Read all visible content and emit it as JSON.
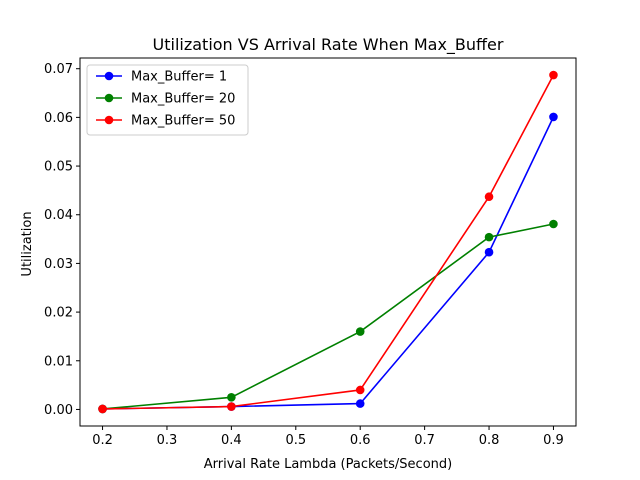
{
  "chart_data": {
    "type": "line",
    "title": "Utilization VS Arrival Rate When Max_Buffer",
    "xlabel": "Arrival Rate Lambda (Packets/Second)",
    "ylabel": "Utilization",
    "xlim": [
      0.165,
      0.935
    ],
    "ylim": [
      -0.0034,
      0.0722
    ],
    "xticks": [
      "0.2",
      "0.3",
      "0.4",
      "0.5",
      "0.6",
      "0.7",
      "0.8",
      "0.9"
    ],
    "yticks": [
      "0.00",
      "0.01",
      "0.02",
      "0.03",
      "0.04",
      "0.05",
      "0.06",
      "0.07"
    ],
    "x": [
      0.2,
      0.4,
      0.6,
      0.8,
      0.9
    ],
    "series": [
      {
        "name": "Max_Buffer= 1",
        "color": "#0000ff",
        "values": [
          0.0001,
          0.0006,
          0.0012,
          0.0323,
          0.0601
        ]
      },
      {
        "name": "Max_Buffer= 20",
        "color": "#008000",
        "values": [
          0.0001,
          0.0025,
          0.016,
          0.0354,
          0.0381
        ]
      },
      {
        "name": "Max_Buffer= 50",
        "color": "#ff0000",
        "values": [
          0.0001,
          0.0006,
          0.004,
          0.0437,
          0.0687
        ]
      }
    ],
    "legend": "top-left",
    "grid": false
  }
}
